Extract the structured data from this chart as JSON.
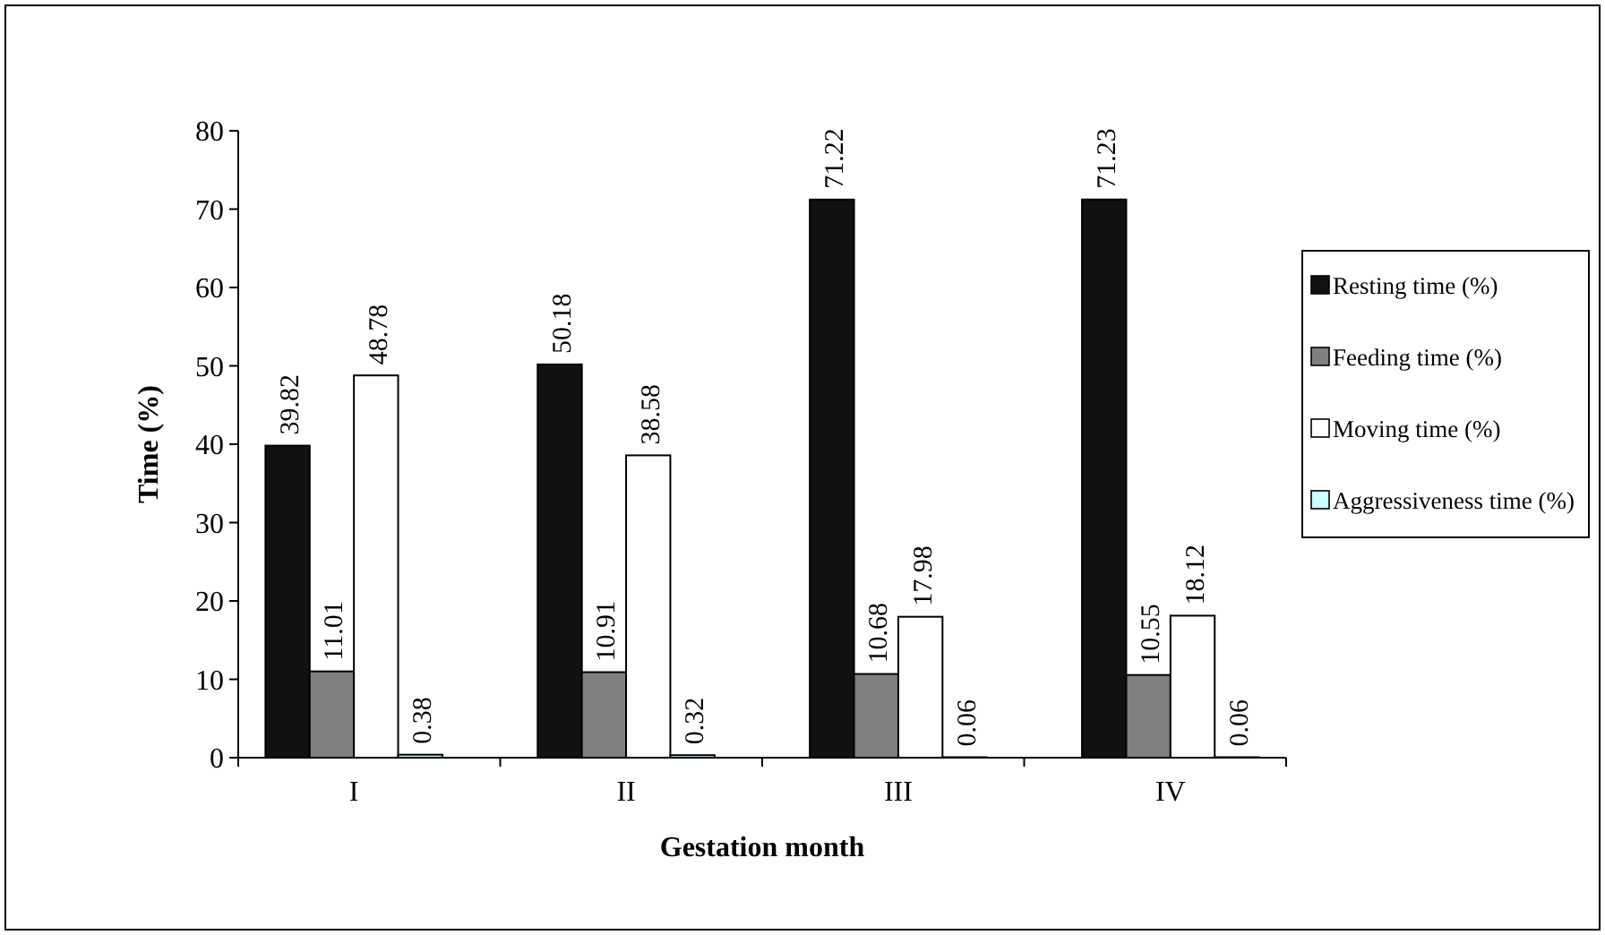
{
  "chart_data": {
    "type": "bar",
    "xlabel": "Gestation month",
    "ylabel": "Time (%)",
    "categories": [
      "I",
      "II",
      "III",
      "IV"
    ],
    "series": [
      {
        "name": "Resting time (%)",
        "color": "#111111",
        "values": [
          39.82,
          50.18,
          71.22,
          71.23
        ]
      },
      {
        "name": "Feeding time (%)",
        "color": "#808080",
        "values": [
          11.01,
          10.91,
          10.68,
          10.55
        ]
      },
      {
        "name": "Moving time (%)",
        "color": "#ffffff",
        "values": [
          48.78,
          38.58,
          17.98,
          18.12
        ]
      },
      {
        "name": "Aggressiveness time (%)",
        "color": "#ccffff",
        "values": [
          0.38,
          0.32,
          0.06,
          0.06
        ]
      }
    ],
    "ylim": [
      0,
      80
    ],
    "yticks": [
      0,
      10,
      20,
      30,
      40,
      50,
      60,
      70,
      80
    ],
    "data_labels": true,
    "legend": "right",
    "grid": false
  }
}
